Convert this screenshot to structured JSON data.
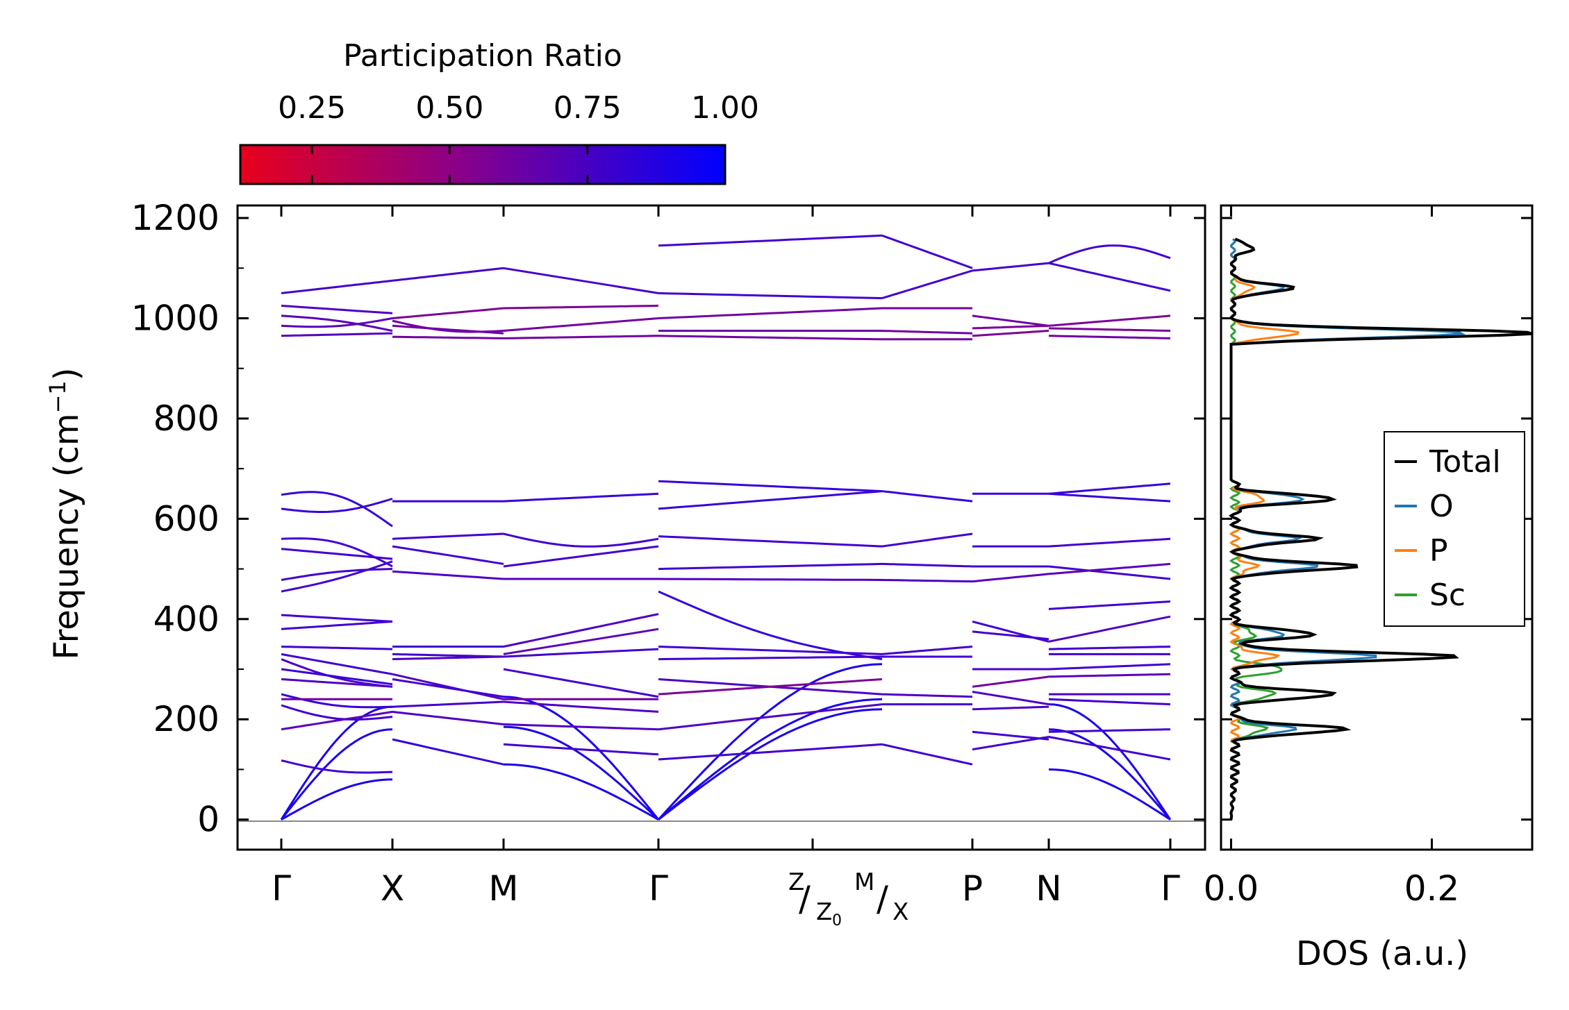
{
  "chart_data": [
    {
      "type": "line",
      "title": "",
      "ylabel": "Frequency (cm⁻¹)",
      "ylabel_main": "Frequency (cm",
      "ylabel_sup": "−1",
      "ylabel_close": ")",
      "ylim": [
        -60,
        1225
      ],
      "yticks": [
        0,
        200,
        400,
        600,
        800,
        1000,
        1200
      ],
      "x_labels": [
        "Γ",
        "X",
        "M",
        "Γ",
        "P",
        "N",
        "Γ"
      ],
      "x_break_label": {
        "z_top": "Z",
        "z_sub": "Z",
        "z_sub2": "0",
        "m_top": "M",
        "x_bottom": "X"
      },
      "segments": [
        {
          "from": "Γ",
          "to": "X",
          "x": [
            0,
            1
          ]
        },
        {
          "from": "X",
          "to": "M",
          "x": [
            1,
            2
          ]
        },
        {
          "from": "M",
          "to": "Γ",
          "x": [
            2,
            3.4
          ]
        },
        {
          "from": "Γ",
          "to": "Z",
          "x": [
            3.4,
            5.4
          ]
        },
        {
          "from": "M",
          "to": "P",
          "x": [
            5.4,
            6.2
          ]
        },
        {
          "from": "P",
          "to": "N",
          "x": [
            6.2,
            6.9
          ]
        },
        {
          "from": "N",
          "to": "Γ",
          "x": [
            6.9,
            8.0
          ]
        }
      ],
      "band_color_min": "#e8001c",
      "band_color_max": "#0000ff",
      "colorbar": {
        "label": "Participation Ratio",
        "ticks": [
          0.25,
          0.5,
          0.75,
          1.0
        ],
        "tick_labels": [
          "0.25",
          "0.50",
          "0.75",
          "1.00"
        ],
        "range": [
          0.12,
          1.0
        ]
      }
    },
    {
      "type": "line",
      "xlabel": "DOS (a.u.)",
      "xlim": [
        -0.01,
        0.3
      ],
      "xticks": [
        0.0,
        0.2
      ],
      "xtick_labels": [
        "0.0",
        "0.2"
      ],
      "legend_position": "right",
      "series": [
        {
          "name": "Total",
          "color": "#000000",
          "peaks": [
            [
              325,
              0.22
            ],
            [
              970,
              0.3
            ],
            [
              505,
              0.12
            ],
            [
              640,
              0.1
            ],
            [
              180,
              0.11
            ],
            [
              250,
              0.1
            ],
            [
              1060,
              0.06
            ],
            [
              1140,
              0.02
            ],
            [
              370,
              0.08
            ],
            [
              560,
              0.08
            ]
          ]
        },
        {
          "name": "O",
          "color": "#1f77b4",
          "peaks": [
            [
              325,
              0.14
            ],
            [
              970,
              0.23
            ],
            [
              505,
              0.08
            ],
            [
              640,
              0.07
            ],
            [
              1060,
              0.05
            ],
            [
              180,
              0.06
            ],
            [
              370,
              0.05
            ],
            [
              560,
              0.06
            ]
          ]
        },
        {
          "name": "P",
          "color": "#ff7f0e",
          "peaks": [
            [
              970,
              0.065
            ],
            [
              640,
              0.03
            ],
            [
              325,
              0.04
            ],
            [
              505,
              0.02
            ],
            [
              1060,
              0.02
            ]
          ]
        },
        {
          "name": "Sc",
          "color": "#2ca02c",
          "peaks": [
            [
              300,
              0.05
            ],
            [
              250,
              0.04
            ],
            [
              180,
              0.03
            ],
            [
              370,
              0.02
            ]
          ]
        }
      ]
    }
  ]
}
